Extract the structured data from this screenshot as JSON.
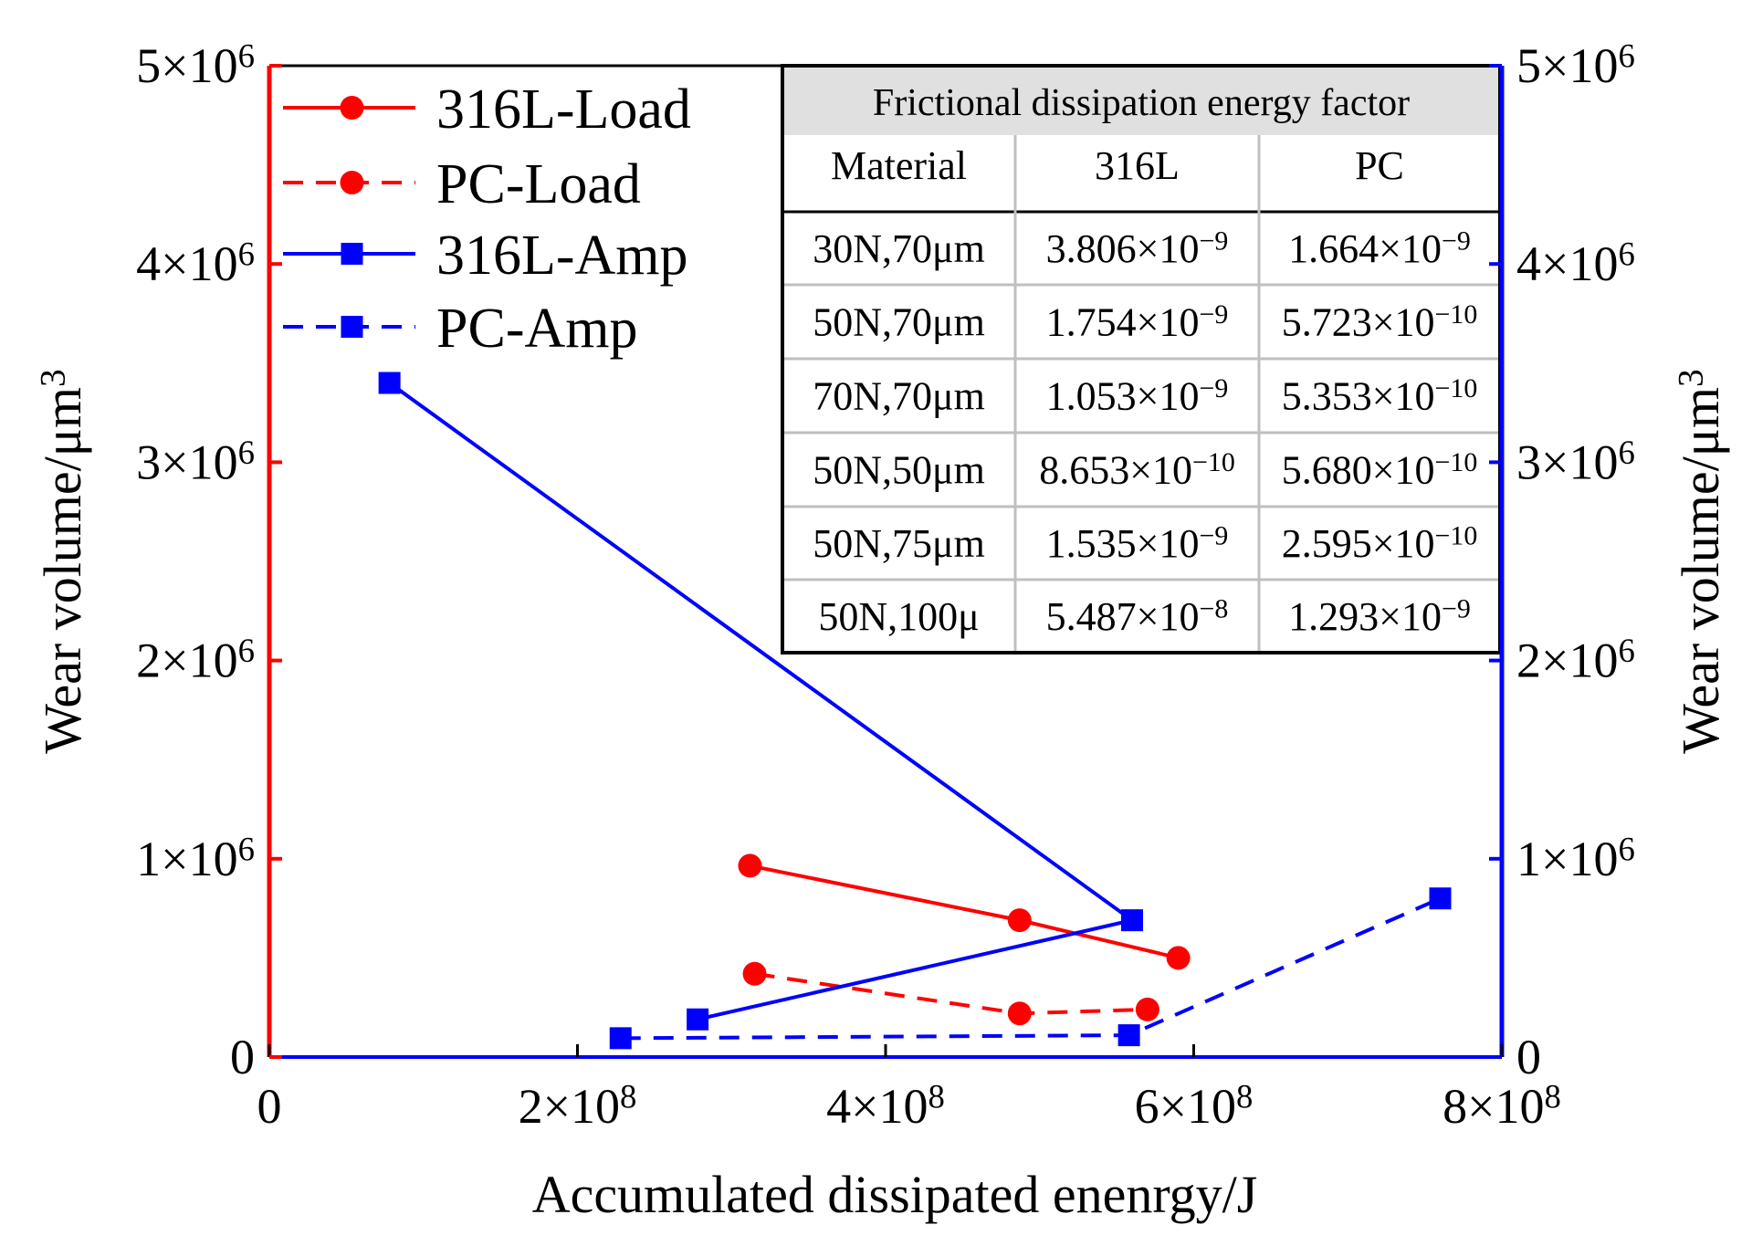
{
  "chart_data": {
    "type": "line",
    "title": "",
    "xlabel": "Accumulated dissipated enenrgy/J",
    "ylabel_left": "Wear volume/μm",
    "ylabel_right": "Wear volume/μm",
    "ylabel_unit_sup": "3",
    "xlim": [
      0,
      800000000
    ],
    "ylim": [
      0,
      5000000
    ],
    "x_ticks": [
      {
        "value": 0,
        "base": "0",
        "sup": ""
      },
      {
        "value": 200000000,
        "base": "2×10",
        "sup": "8"
      },
      {
        "value": 400000000,
        "base": "4×10",
        "sup": "8"
      },
      {
        "value": 600000000,
        "base": "6×10",
        "sup": "8"
      },
      {
        "value": 800000000,
        "base": "8×10",
        "sup": "8"
      }
    ],
    "y_ticks": [
      {
        "value": 0,
        "base": "0",
        "sup": ""
      },
      {
        "value": 1000000,
        "base": "1×10",
        "sup": "6"
      },
      {
        "value": 2000000,
        "base": "2×10",
        "sup": "6"
      },
      {
        "value": 3000000,
        "base": "3×10",
        "sup": "6"
      },
      {
        "value": 4000000,
        "base": "4×10",
        "sup": "6"
      },
      {
        "value": 5000000,
        "base": "5×10",
        "sup": "6"
      }
    ],
    "left_axis_color": "#ff0000",
    "right_axis_color": "#0000ff",
    "legend_position": "top-left",
    "series": [
      {
        "name": "316L-Load",
        "color": "#ff0000",
        "dash": "solid",
        "marker": "circle",
        "x": [
          312000000,
          487000000,
          590000000
        ],
        "y": [
          965000,
          690000,
          500000
        ]
      },
      {
        "name": "PC-Load",
        "color": "#ff0000",
        "dash": "dashed",
        "marker": "circle",
        "x": [
          315000000,
          487000000,
          570000000
        ],
        "y": [
          420000,
          220000,
          240000
        ]
      },
      {
        "name": "316L-Amp",
        "color": "#0000ff",
        "dash": "solid",
        "marker": "square",
        "x": [
          78000000,
          560000000,
          278000000
        ],
        "y": [
          3400000,
          690000,
          190000
        ]
      },
      {
        "name": "PC-Amp",
        "color": "#0000ff",
        "dash": "dashed",
        "marker": "square",
        "x": [
          228000000,
          558000000,
          760000000
        ],
        "y": [
          95000,
          110000,
          800000
        ]
      }
    ],
    "inset_table": {
      "title": "Frictional dissipation energy factor",
      "columns": [
        "Material",
        "316L",
        "PC"
      ],
      "rows": [
        {
          "label": "30N,70μm",
          "c316l": {
            "base": "3.806×10",
            "sup": "−9"
          },
          "cpc": {
            "base": "1.664×10",
            "sup": "−9"
          }
        },
        {
          "label": "50N,70μm",
          "c316l": {
            "base": "1.754×10",
            "sup": "−9"
          },
          "cpc": {
            "base": "5.723×10",
            "sup": "−10"
          }
        },
        {
          "label": "70N,70μm",
          "c316l": {
            "base": "1.053×10",
            "sup": "−9"
          },
          "cpc": {
            "base": "5.353×10",
            "sup": "−10"
          }
        },
        {
          "label": "50N,50μm",
          "c316l": {
            "base": "8.653×10",
            "sup": "−10"
          },
          "cpc": {
            "base": "5.680×10",
            "sup": "−10"
          }
        },
        {
          "label": "50N,75μm",
          "c316l": {
            "base": "1.535×10",
            "sup": "−9"
          },
          "cpc": {
            "base": "2.595×10",
            "sup": "−10"
          }
        },
        {
          "label": "50N,100μ",
          "c316l": {
            "base": "5.487×10",
            "sup": "−8"
          },
          "cpc": {
            "base": "1.293×10",
            "sup": "−9"
          }
        }
      ]
    }
  }
}
